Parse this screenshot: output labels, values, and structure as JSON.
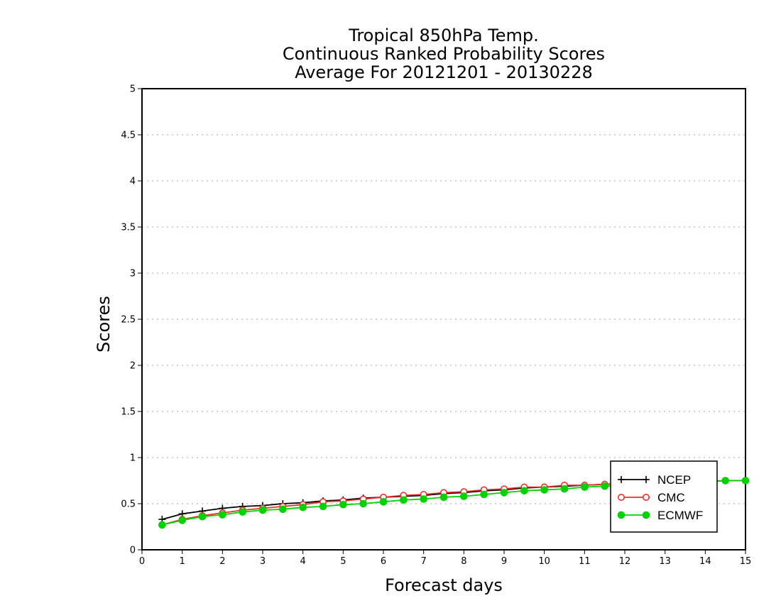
{
  "chart_data": {
    "type": "line",
    "title": [
      "Tropical 850hPa Temp.",
      "Continuous Ranked Probability Scores",
      "Average For 20121201 - 20130228"
    ],
    "xlabel": "Forecast days",
    "ylabel": "Scores",
    "xlim": [
      0,
      15
    ],
    "ylim": [
      0,
      5
    ],
    "xticks": [
      "0",
      "1",
      "2",
      "3",
      "4",
      "5",
      "6",
      "7",
      "8",
      "9",
      "10",
      "11",
      "12",
      "13",
      "14",
      "15"
    ],
    "yticks": [
      "0",
      "0.5",
      "1",
      "1.5",
      "2",
      "2.5",
      "3",
      "3.5",
      "4",
      "4.5",
      "5"
    ],
    "grid": "horizontal dotted",
    "legend_position": "bottom-right",
    "x": [
      0.5,
      1,
      1.5,
      2,
      2.5,
      3,
      3.5,
      4,
      4.5,
      5,
      5.5,
      6,
      6.5,
      7,
      7.5,
      8,
      8.5,
      9,
      9.5,
      10,
      10.5,
      11,
      11.5,
      12,
      12.5,
      13,
      13.5,
      14,
      14.5,
      15
    ],
    "series": [
      {
        "name": "NCEP",
        "color": "#000000",
        "marker": "plus",
        "values": [
          0.33,
          0.39,
          0.42,
          0.45,
          0.47,
          0.48,
          0.5,
          0.51,
          0.53,
          0.54,
          0.56,
          0.57,
          0.58,
          0.59,
          0.61,
          0.62,
          0.64,
          0.65,
          0.67,
          0.68,
          0.69,
          0.7,
          0.71,
          0.72,
          0.73,
          0.73,
          0.74,
          0.74,
          0.75,
          0.75
        ]
      },
      {
        "name": "CMC",
        "color": "#e8302a",
        "marker": "open-circle",
        "values": [
          0.27,
          0.33,
          0.37,
          0.4,
          0.43,
          0.45,
          0.47,
          0.49,
          0.52,
          0.53,
          0.55,
          0.57,
          0.59,
          0.6,
          0.62,
          0.63,
          0.65,
          0.66,
          0.68,
          0.68,
          0.7,
          0.7,
          0.71,
          0.72,
          0.73,
          0.73,
          0.74,
          0.74,
          0.75,
          0.75
        ]
      },
      {
        "name": "ECMWF",
        "color": "#00d200",
        "marker": "filled-circle",
        "values": [
          0.27,
          0.32,
          0.36,
          0.38,
          0.41,
          0.43,
          0.44,
          0.46,
          0.47,
          0.49,
          0.5,
          0.52,
          0.54,
          0.55,
          0.57,
          0.58,
          0.6,
          0.62,
          0.64,
          0.65,
          0.66,
          0.68,
          0.69,
          0.7,
          0.71,
          0.72,
          0.73,
          0.74,
          0.75,
          0.75
        ]
      }
    ]
  }
}
